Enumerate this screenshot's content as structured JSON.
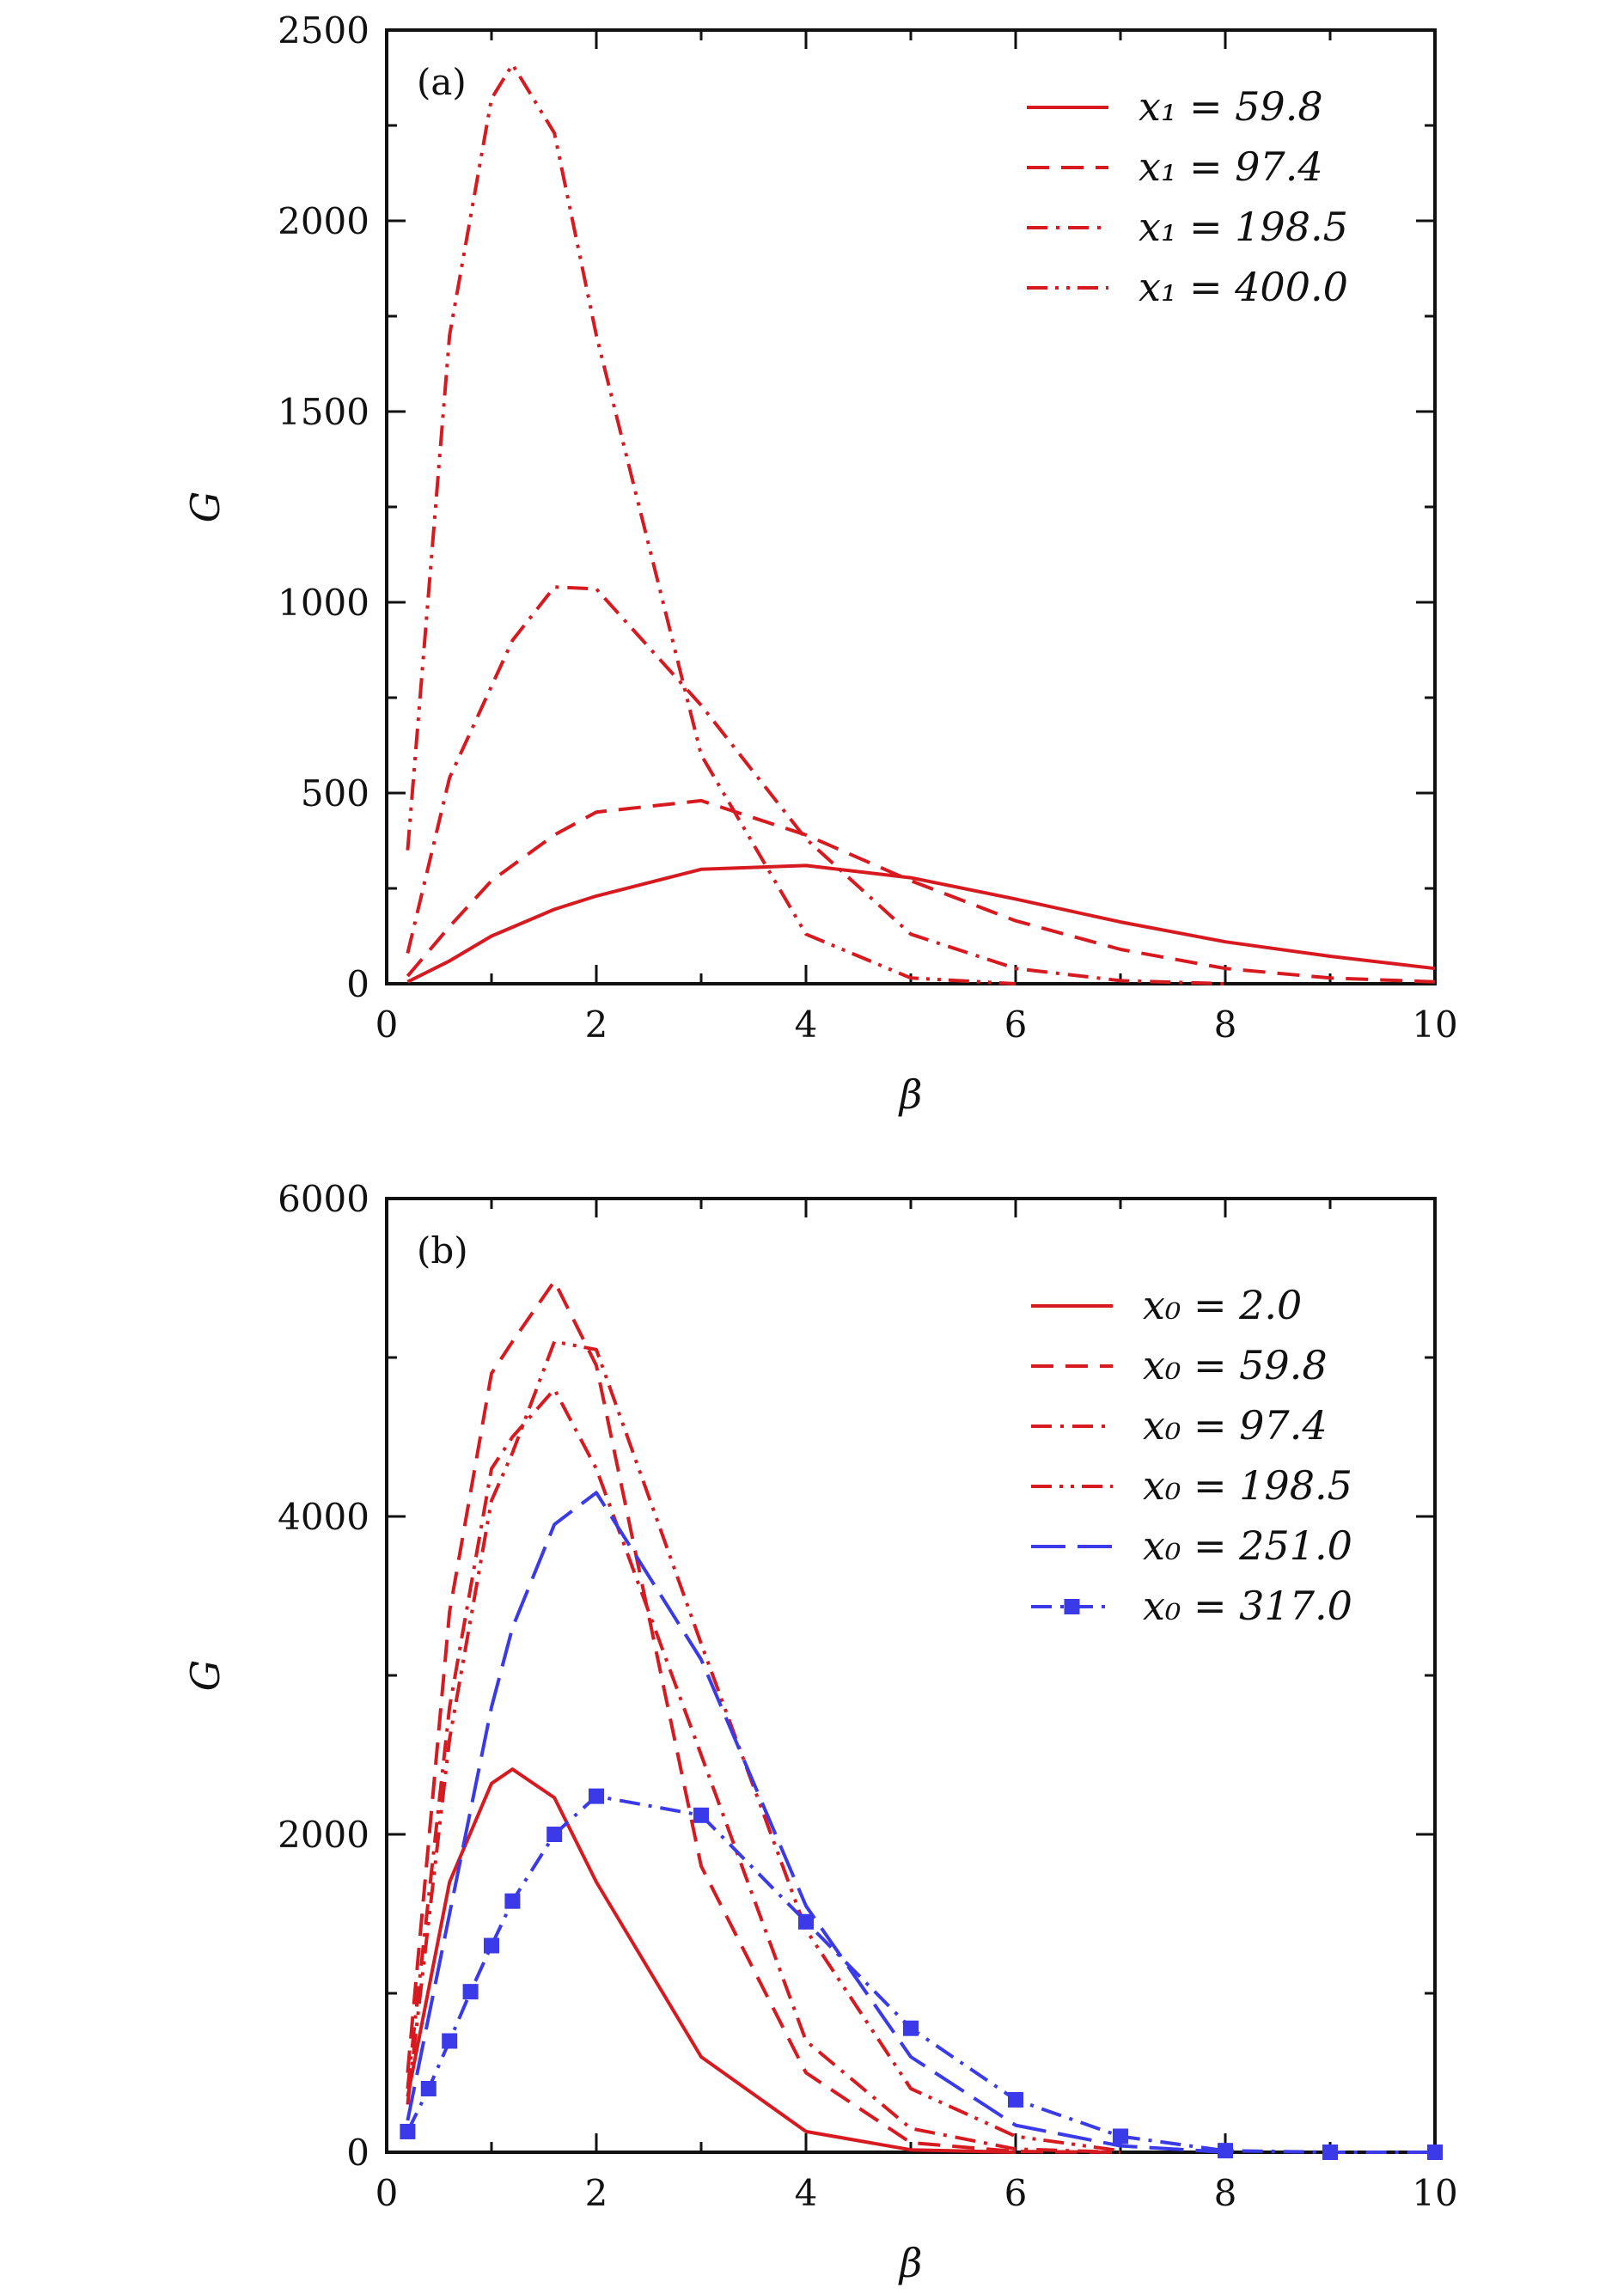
{
  "colors": {
    "red": "#d71920",
    "blue": "#3a3ae8",
    "axis": "#111111"
  },
  "chart_data": [
    {
      "type": "line",
      "panel_label": "(a)",
      "xlabel": "β",
      "ylabel": "G",
      "xlim": [
        0,
        10
      ],
      "ylim": [
        0,
        2500
      ],
      "xticks": [
        0,
        2,
        4,
        6,
        8,
        10
      ],
      "yticks": [
        0,
        500,
        1000,
        1500,
        2000,
        2500
      ],
      "grid": false,
      "legend_position": "top-right",
      "series": [
        {
          "name": "x₁ = 59.8",
          "color": "red",
          "dash": "solid",
          "x": [
            0.2,
            0.6,
            1.0,
            1.6,
            2.0,
            3.0,
            4.0,
            5.0,
            6.0,
            7.0,
            8.0,
            9.0,
            10.0
          ],
          "y": [
            5,
            60,
            125,
            195,
            230,
            300,
            310,
            278,
            222,
            162,
            110,
            72,
            40
          ]
        },
        {
          "name": "x₁ = 97.4",
          "color": "red",
          "dash": "dash",
          "x": [
            0.2,
            0.6,
            1.0,
            1.6,
            2.0,
            3.0,
            4.0,
            5.0,
            6.0,
            7.0,
            8.0,
            9.0,
            10.0
          ],
          "y": [
            20,
            150,
            270,
            390,
            450,
            480,
            390,
            270,
            165,
            90,
            40,
            15,
            5
          ]
        },
        {
          "name": "x₁ = 198.5",
          "color": "red",
          "dash": "dashdot",
          "x": [
            0.2,
            0.6,
            1.0,
            1.2,
            1.6,
            2.0,
            3.0,
            4.0,
            5.0,
            6.0,
            7.0,
            8.0
          ],
          "y": [
            80,
            540,
            780,
            900,
            1040,
            1035,
            730,
            380,
            130,
            40,
            8,
            0
          ]
        },
        {
          "name": "x₁ = 400.0",
          "color": "red",
          "dash": "dashdotdot",
          "x": [
            0.2,
            0.6,
            1.0,
            1.2,
            1.6,
            2.0,
            3.0,
            4.0,
            5.0,
            6.0
          ],
          "y": [
            350,
            1700,
            2320,
            2410,
            2230,
            1700,
            600,
            130,
            15,
            0
          ]
        }
      ]
    },
    {
      "type": "line",
      "panel_label": "(b)",
      "xlabel": "β",
      "ylabel": "G",
      "xlim": [
        0,
        10
      ],
      "ylim": [
        0,
        6000
      ],
      "xticks": [
        0,
        2,
        4,
        6,
        8,
        10
      ],
      "yticks": [
        0,
        2000,
        4000,
        6000
      ],
      "grid": false,
      "legend_position": "top-right",
      "series": [
        {
          "name": "x₀ = 2.0",
          "color": "red",
          "dash": "solid",
          "x": [
            0.2,
            0.6,
            1.0,
            1.2,
            1.6,
            2.0,
            3.0,
            4.0,
            5.0,
            6.0
          ],
          "y": [
            350,
            1700,
            2320,
            2410,
            2230,
            1700,
            600,
            130,
            15,
            0
          ]
        },
        {
          "name": "x₀ = 59.8",
          "color": "red",
          "dash": "dash",
          "x": [
            0.2,
            0.6,
            1.0,
            1.2,
            1.6,
            2.0,
            3.0,
            4.0,
            5.0,
            6.0,
            7.0
          ],
          "y": [
            500,
            3400,
            4900,
            5100,
            5480,
            4950,
            1800,
            500,
            60,
            5,
            0
          ]
        },
        {
          "name": "x₀ = 97.4",
          "color": "red",
          "dash": "dashdot",
          "x": [
            0.2,
            0.6,
            1.0,
            1.2,
            1.6,
            2.0,
            3.0,
            4.0,
            5.0,
            6.0,
            7.0
          ],
          "y": [
            400,
            2800,
            4300,
            4500,
            4800,
            4300,
            2500,
            700,
            150,
            20,
            0
          ]
        },
        {
          "name": "x₀ = 198.5",
          "color": "red",
          "dash": "dashdotdot",
          "x": [
            0.2,
            0.6,
            1.0,
            1.2,
            1.6,
            2.0,
            3.0,
            4.0,
            5.0,
            6.0,
            7.0
          ],
          "y": [
            300,
            2600,
            4100,
            4400,
            5100,
            5050,
            3200,
            1400,
            400,
            100,
            10
          ]
        },
        {
          "name": "x₀ = 251.0",
          "color": "blue",
          "dash": "longdash",
          "x": [
            0.2,
            0.6,
            1.0,
            1.2,
            1.6,
            2.0,
            3.0,
            4.0,
            5.0,
            6.0,
            7.0,
            8.0
          ],
          "y": [
            200,
            1500,
            2800,
            3300,
            3950,
            4150,
            3100,
            1550,
            600,
            170,
            40,
            0
          ]
        },
        {
          "name": "x₀ = 317.0",
          "color": "blue",
          "dash": "dashdot",
          "marker": "square",
          "x": [
            0.2,
            0.4,
            0.6,
            0.8,
            1.0,
            1.2,
            1.6,
            2.0,
            3.0,
            4.0,
            5.0,
            6.0,
            7.0,
            8.0,
            9.0,
            10.0
          ],
          "y": [
            130,
            400,
            700,
            1010,
            1300,
            1580,
            2000,
            2240,
            2120,
            1450,
            780,
            330,
            100,
            10,
            0,
            0
          ]
        }
      ]
    }
  ]
}
